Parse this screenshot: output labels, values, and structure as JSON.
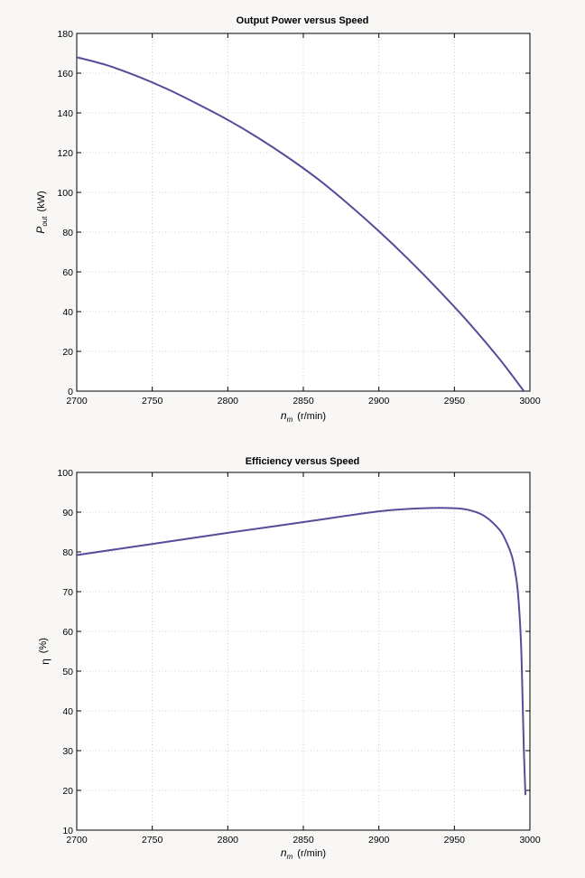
{
  "chart_data": [
    {
      "type": "line",
      "title": "Output Power versus Speed",
      "xlabel": {
        "symbol": "n",
        "subscript": "m",
        "unit": "(r/min)"
      },
      "ylabel": {
        "symbol": "P",
        "subscript": "out",
        "unit": "(kW)"
      },
      "xlim": [
        2700,
        3000
      ],
      "ylim": [
        0,
        180
      ],
      "xticks": [
        2700,
        2750,
        2800,
        2850,
        2900,
        2950,
        3000
      ],
      "yticks": [
        0,
        20,
        40,
        60,
        80,
        100,
        120,
        140,
        160,
        180
      ],
      "grid": true,
      "color": "#5a4a9a",
      "series": [
        {
          "x": [
            2700,
            2720,
            2740,
            2760,
            2780,
            2800,
            2820,
            2840,
            2860,
            2880,
            2900,
            2920,
            2940,
            2960,
            2980,
            2996
          ],
          "y": [
            168,
            164,
            158.5,
            152,
            144.5,
            136.5,
            127.5,
            117.5,
            106.5,
            94,
            80.5,
            66,
            50.5,
            34,
            16,
            0
          ]
        }
      ]
    },
    {
      "type": "line",
      "title": "Efficiency versus Speed",
      "xlabel": {
        "symbol": "n",
        "subscript": "m",
        "unit": "(r/min)"
      },
      "ylabel": {
        "symbol": "η",
        "subscript": "",
        "unit": "(%)"
      },
      "xlim": [
        2700,
        3000
      ],
      "ylim": [
        10,
        100
      ],
      "xticks": [
        2700,
        2750,
        2800,
        2850,
        2900,
        2950,
        3000
      ],
      "yticks": [
        10,
        20,
        30,
        40,
        50,
        60,
        70,
        80,
        90,
        100
      ],
      "grid": true,
      "color": "#5a4a9a",
      "series": [
        {
          "x": [
            2700,
            2750,
            2800,
            2850,
            2900,
            2930,
            2950,
            2960,
            2970,
            2980,
            2985,
            2988,
            2990,
            2992,
            2994,
            2995,
            2996,
            2997
          ],
          "y": [
            79.2,
            82,
            84.8,
            87.5,
            90.2,
            91,
            91,
            90.5,
            89,
            85.5,
            82,
            79,
            75.5,
            70,
            58,
            45,
            30,
            19
          ]
        }
      ]
    }
  ]
}
